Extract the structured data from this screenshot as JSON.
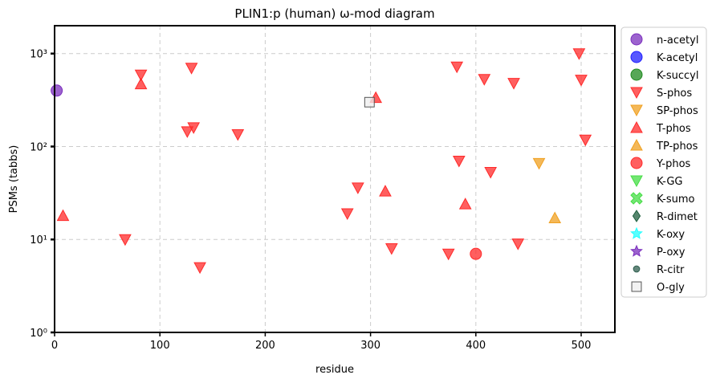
{
  "chart_data": {
    "type": "scatter",
    "title": "PLIN1:p (human) ω-mod diagram",
    "xlabel": "residue",
    "ylabel": "PSMs (tabbs)",
    "xlim": [
      0,
      532
    ],
    "ylim_log10": [
      0,
      3.3
    ],
    "yscale": "log",
    "x_ticks": [
      0,
      100,
      200,
      300,
      400,
      500
    ],
    "y_ticks": [
      {
        "value": 1,
        "label": "10⁰"
      },
      {
        "value": 10,
        "label": "10¹"
      },
      {
        "value": 100,
        "label": "10²"
      },
      {
        "value": 1000,
        "label": "10³"
      }
    ],
    "grid": true,
    "legend_placement": "right-outside",
    "legend": [
      {
        "label": "n-acetyl",
        "marker": "circle",
        "color": "#7b2fbe"
      },
      {
        "label": "K-acetyl",
        "marker": "circle",
        "color": "#1f1fff"
      },
      {
        "label": "K-succyl",
        "marker": "circle",
        "color": "#1f8a1f"
      },
      {
        "label": "S-phos",
        "marker": "triangle-down",
        "color": "#ff2a2a"
      },
      {
        "label": "SP-phos",
        "marker": "triangle-down",
        "color": "#f0a020"
      },
      {
        "label": "T-phos",
        "marker": "triangle-up",
        "color": "#ff2a2a"
      },
      {
        "label": "TP-phos",
        "marker": "triangle-up",
        "color": "#f0a020"
      },
      {
        "label": "Y-phos",
        "marker": "circle",
        "color": "#ff2a2a"
      },
      {
        "label": "K-GG",
        "marker": "triangle-down",
        "color": "#44dd44"
      },
      {
        "label": "K-sumo",
        "marker": "x",
        "color": "#44dd44"
      },
      {
        "label": "R-dimet",
        "marker": "diamond",
        "color": "#1e5e3e"
      },
      {
        "label": "K-oxy",
        "marker": "star",
        "color": "#22ffff"
      },
      {
        "label": "P-oxy",
        "marker": "star",
        "color": "#7b2fbe"
      },
      {
        "label": "R-citr",
        "marker": "small-circle",
        "color": "#2f5f4f"
      },
      {
        "label": "O-gly",
        "marker": "square",
        "color": "#eeeeee"
      }
    ],
    "series": [
      {
        "name": "n-acetyl",
        "marker": "circle",
        "color": "#7b2fbe",
        "points": [
          {
            "x": 2,
            "y": 400
          }
        ]
      },
      {
        "name": "S-phos",
        "marker": "triangle-down",
        "color": "#ff2a2a",
        "points": [
          {
            "x": 67,
            "y": 10
          },
          {
            "x": 82,
            "y": 590
          },
          {
            "x": 130,
            "y": 700
          },
          {
            "x": 126,
            "y": 145
          },
          {
            "x": 132,
            "y": 160
          },
          {
            "x": 138,
            "y": 5
          },
          {
            "x": 174,
            "y": 135
          },
          {
            "x": 278,
            "y": 19
          },
          {
            "x": 288,
            "y": 36
          },
          {
            "x": 320,
            "y": 8
          },
          {
            "x": 374,
            "y": 7
          },
          {
            "x": 382,
            "y": 720
          },
          {
            "x": 384,
            "y": 70
          },
          {
            "x": 408,
            "y": 530
          },
          {
            "x": 414,
            "y": 53
          },
          {
            "x": 436,
            "y": 480
          },
          {
            "x": 440,
            "y": 9
          },
          {
            "x": 498,
            "y": 1000
          },
          {
            "x": 500,
            "y": 520
          },
          {
            "x": 504,
            "y": 118
          }
        ]
      },
      {
        "name": "SP-phos",
        "marker": "triangle-down",
        "color": "#f0a020",
        "points": [
          {
            "x": 460,
            "y": 66
          }
        ]
      },
      {
        "name": "T-phos",
        "marker": "triangle-up",
        "color": "#ff2a2a",
        "points": [
          {
            "x": 8,
            "y": 18
          },
          {
            "x": 82,
            "y": 470
          },
          {
            "x": 305,
            "y": 335
          },
          {
            "x": 314,
            "y": 33
          },
          {
            "x": 390,
            "y": 24
          }
        ]
      },
      {
        "name": "TP-phos",
        "marker": "triangle-up",
        "color": "#f0a020",
        "points": [
          {
            "x": 475,
            "y": 17
          }
        ]
      },
      {
        "name": "Y-phos",
        "marker": "circle",
        "color": "#ff2a2a",
        "points": [
          {
            "x": 400,
            "y": 7
          }
        ]
      },
      {
        "name": "O-gly",
        "marker": "square",
        "color": "#eeeeee",
        "points": [
          {
            "x": 299,
            "y": 300
          }
        ]
      }
    ]
  }
}
